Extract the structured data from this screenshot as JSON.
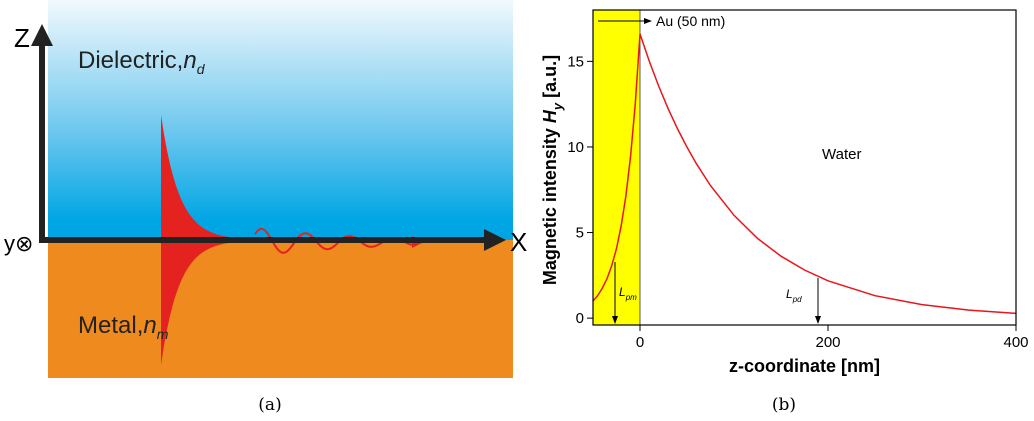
{
  "panel_a": {
    "axis_z": "Z",
    "axis_x": "X",
    "axis_y": "y⊗",
    "dielectric": {
      "text": "Dielectric,",
      "symbol": "n",
      "sub": "d"
    },
    "metal": {
      "text": "Metal,",
      "symbol": "n",
      "sub": "m"
    },
    "caption": "(a)"
  },
  "chart_data": {
    "type": "line",
    "caption": "(b)",
    "x_label": "z-coordinate [nm]",
    "y_label": {
      "text": "Magnetic intensity ",
      "symbol": "H",
      "sub": "y",
      "unit": " [a.u.]"
    },
    "x": [
      -50,
      -45,
      -40,
      -35,
      -30,
      -25,
      -20,
      -15,
      -10,
      -5,
      0,
      10,
      20,
      30,
      40,
      50,
      60,
      75,
      100,
      125,
      150,
      175,
      200,
      250,
      300,
      350,
      400
    ],
    "values": [
      1.0,
      1.32,
      1.76,
      2.32,
      3.08,
      4.07,
      5.4,
      7.14,
      9.47,
      12.53,
      16.6,
      14.99,
      13.54,
      12.23,
      11.05,
      9.99,
      9.02,
      7.74,
      6.01,
      4.66,
      3.62,
      2.81,
      2.18,
      1.31,
      0.79,
      0.47,
      0.28
    ],
    "color": "#e8161b",
    "shade": {
      "x": [
        -50,
        0
      ],
      "color": "#ffff00"
    },
    "xlim": [
      -50,
      400
    ],
    "xticks": [
      0,
      200,
      400
    ],
    "ylim": [
      -0.4,
      18
    ],
    "yticks": [
      0,
      5,
      10,
      15
    ],
    "annotations": {
      "gold": "Au (50 nm)",
      "water": "Water",
      "l_pm": {
        "text": "L",
        "sub": "pm"
      },
      "l_pd": {
        "text": "L",
        "sub": "pd"
      }
    }
  }
}
